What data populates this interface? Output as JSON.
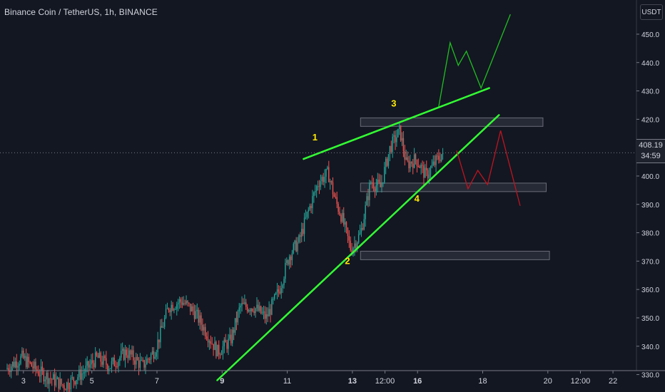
{
  "header": {
    "title": "Binance Coin / TetherUS, 1h, BINANCE",
    "unit": "USDT"
  },
  "last_price": {
    "price": "408.19",
    "countdown": "34:59"
  },
  "colors": {
    "background": "#131722",
    "candle_up": "#26a69a",
    "candle_down": "#ef5350",
    "trendline": "#33ff33",
    "bull_path": "#1fbf1f",
    "bear_path": "#c0141f",
    "wave_label": "#ffea00",
    "zone_fill": "#2a2e39",
    "zone_border": "#6a6d78",
    "axis_text": "#d1d4dc"
  },
  "chart_data": {
    "type": "candlestick",
    "title": "Binance Coin / TetherUS, 1h, BINANCE",
    "y_unit": "USDT",
    "y_range": [
      329,
      462
    ],
    "y_ticks": [
      330,
      340,
      350,
      360,
      370,
      380,
      390,
      400,
      410,
      420,
      430,
      440,
      450
    ],
    "x_ticks": [
      {
        "label": "3",
        "t": 0.5
      },
      {
        "label": "5",
        "t": 2.6
      },
      {
        "label": "7",
        "t": 4.6
      },
      {
        "label": "9",
        "t": 6.6
      },
      {
        "label": "11",
        "t": 8.6
      },
      {
        "label": "13",
        "t": 10.6
      },
      {
        "label": "12:00",
        "t": 11.6
      },
      {
        "label": "16",
        "t": 12.6
      },
      {
        "label": "18",
        "t": 14.6
      },
      {
        "label": "20",
        "t": 16.6
      },
      {
        "label": "12:00",
        "t": 17.6
      },
      {
        "label": "22",
        "t": 18.6
      }
    ],
    "price_path": [
      [
        0.0,
        332
      ],
      [
        0.5,
        336
      ],
      [
        1.0,
        331
      ],
      [
        1.8,
        326
      ],
      [
        2.4,
        331
      ],
      [
        2.8,
        336
      ],
      [
        3.2,
        333
      ],
      [
        3.7,
        338
      ],
      [
        4.2,
        333
      ],
      [
        4.6,
        339
      ],
      [
        5.0,
        354
      ],
      [
        5.4,
        356
      ],
      [
        5.8,
        352
      ],
      [
        6.1,
        346
      ],
      [
        6.5,
        338
      ],
      [
        6.9,
        342
      ],
      [
        7.2,
        354
      ],
      [
        7.6,
        354
      ],
      [
        8.0,
        350
      ],
      [
        8.4,
        360
      ],
      [
        8.7,
        372
      ],
      [
        9.0,
        377
      ],
      [
        9.3,
        388
      ],
      [
        9.6,
        398
      ],
      [
        9.9,
        401
      ],
      [
        10.1,
        392
      ],
      [
        10.3,
        386
      ],
      [
        10.6,
        374
      ],
      [
        10.9,
        380
      ],
      [
        11.2,
        398
      ],
      [
        11.5,
        396
      ],
      [
        11.8,
        410
      ],
      [
        12.1,
        416
      ],
      [
        12.3,
        404
      ],
      [
        12.6,
        406
      ],
      [
        12.9,
        400
      ],
      [
        13.2,
        405
      ],
      [
        13.4,
        408.19
      ]
    ],
    "last_price": 408.19,
    "candles": [],
    "trendlines": [
      {
        "name": "upper",
        "points": [
          [
            9.1,
            406
          ],
          [
            14.8,
            431
          ]
        ]
      },
      {
        "name": "lower",
        "points": [
          [
            6.45,
            328
          ],
          [
            15.1,
            421.5
          ]
        ]
      }
    ],
    "zones": [
      {
        "from": 10.85,
        "to": 16.45,
        "low": 417.5,
        "high": 420.5
      },
      {
        "from": 10.85,
        "to": 16.55,
        "low": 394.5,
        "high": 397.5
      },
      {
        "from": 10.85,
        "to": 16.65,
        "low": 370.5,
        "high": 373.5
      }
    ],
    "projections": [
      {
        "name": "bullish",
        "points": [
          [
            13.25,
            424.5
          ],
          [
            13.6,
            447
          ],
          [
            13.85,
            439
          ],
          [
            14.1,
            444
          ],
          [
            14.55,
            431
          ],
          [
            15.45,
            457
          ]
        ]
      },
      {
        "name": "bearish",
        "points": [
          [
            13.8,
            409
          ],
          [
            14.15,
            395.5
          ],
          [
            14.45,
            402
          ],
          [
            14.75,
            397
          ],
          [
            15.15,
            416
          ],
          [
            15.75,
            389.5
          ]
        ]
      }
    ],
    "annotations": [
      {
        "text": "1",
        "t": 9.45,
        "price": 412.5
      },
      {
        "text": "2",
        "t": 10.45,
        "price": 369
      },
      {
        "text": "3",
        "t": 11.87,
        "price": 424.5
      },
      {
        "text": "4",
        "t": 12.58,
        "price": 391
      }
    ]
  }
}
